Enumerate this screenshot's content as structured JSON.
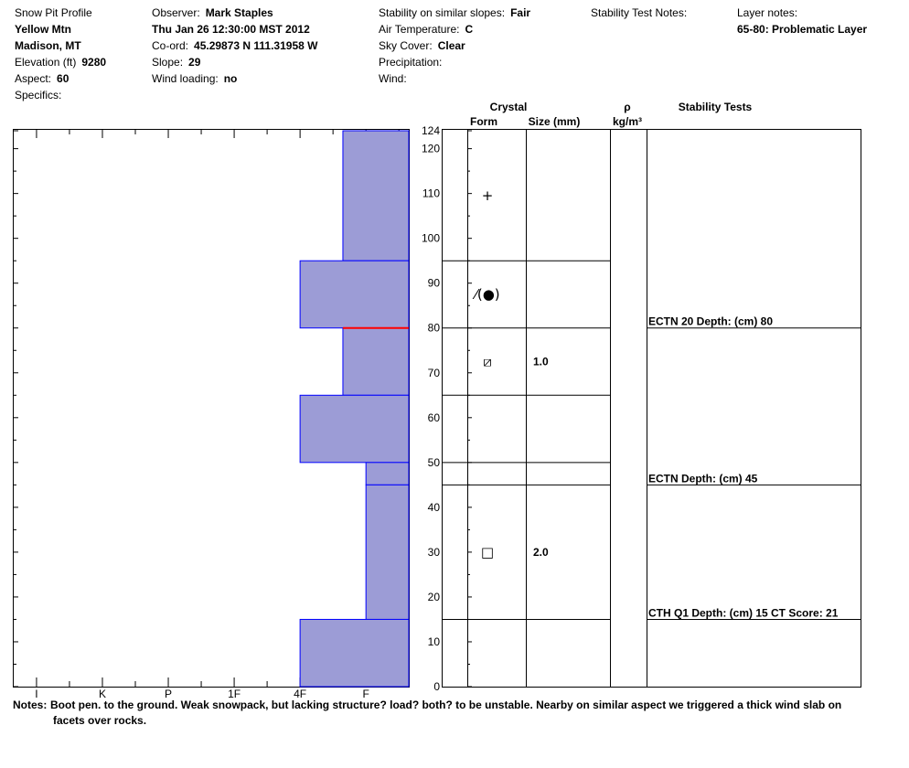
{
  "header": {
    "columns": [
      [
        {
          "label": "Snow Pit Profile"
        },
        {
          "value": "Yellow Mtn"
        },
        {
          "value": "Madison, MT"
        },
        {
          "label": "Elevation (ft)",
          "value": "9280"
        },
        {
          "label": "Aspect:",
          "value": "60"
        },
        {
          "label": "Specifics:"
        }
      ],
      [
        {
          "label": "Observer:",
          "value": "Mark Staples"
        },
        {
          "value": "Thu Jan 26 12:30:00 MST 2012"
        },
        {
          "label": "Co-ord:",
          "value": "45.29873 N 111.31958 W"
        },
        {
          "label": "Slope:",
          "value": "29"
        },
        {
          "label": "Wind loading:",
          "value": "no"
        }
      ],
      [
        {
          "label": "Stability on similar slopes:",
          "value": "Fair"
        },
        {
          "label": "Air Temperature:",
          "value": "C"
        },
        {
          "label": "Sky Cover:",
          "value": "Clear"
        },
        {
          "label": "Precipitation:"
        },
        {
          "label": "Wind:"
        }
      ],
      [
        {
          "label": "Stability Test Notes:"
        }
      ],
      [
        {
          "label": "Layer notes:"
        },
        {
          "value": "65-80: Problematic Layer"
        }
      ]
    ]
  },
  "chart_data": {
    "type": "hardness-profile",
    "xlim": [
      6.36,
      0.35
    ],
    "xticks": [
      {
        "value": 6,
        "label": "I"
      },
      {
        "value": 5,
        "label": "K"
      },
      {
        "value": 4,
        "label": "P"
      },
      {
        "value": 3,
        "label": "1F"
      },
      {
        "value": 2,
        "label": "4F"
      },
      {
        "value": 1,
        "label": "F"
      }
    ],
    "xminor": [
      5.5,
      4.5,
      3.5,
      2.5,
      1.5,
      0.5
    ],
    "ylim": [
      0,
      124
    ],
    "yticks": [
      0,
      10,
      20,
      30,
      40,
      50,
      60,
      70,
      80,
      90,
      100,
      110,
      120,
      124
    ],
    "yminor": [
      5,
      15,
      25,
      35,
      45,
      55,
      65,
      75,
      85,
      95,
      105,
      115
    ],
    "bar_color": "#9c9cd6",
    "edge_color": "#0000ff",
    "columns": {
      "crystal": "Crystal",
      "form": "Form",
      "size": "Size (mm)",
      "density": "ρ",
      "density_unit": "kg/m³",
      "tests": "Stability Tests"
    },
    "layers": [
      {
        "top": 124,
        "bottom": 95,
        "hardness": 1.35,
        "form": "+"
      },
      {
        "top": 95,
        "bottom": 80,
        "hardness": 2,
        "form": "⁄(●)"
      },
      {
        "top": 80,
        "bottom": 65,
        "hardness": 1.35,
        "form": "⧄",
        "size": "1.0",
        "highlight_color": "#ff0000"
      },
      {
        "top": 65,
        "bottom": 50,
        "hardness": 2
      },
      {
        "top": 50,
        "bottom": 45,
        "hardness": 1
      },
      {
        "top": 45,
        "bottom": 15,
        "hardness": 1,
        "form": "□",
        "size": "2.0"
      },
      {
        "top": 15,
        "bottom": 0,
        "hardness": 2
      }
    ],
    "tests": [
      {
        "depth": 80,
        "label": "ECTN 20   Depth: (cm) 80"
      },
      {
        "depth": 45,
        "label": "ECTN   Depth: (cm) 45"
      },
      {
        "depth": 15,
        "label": "CTH Q1 Depth: (cm) 15 CT Score: 21"
      }
    ]
  },
  "notes": {
    "label": "Notes:",
    "lines": [
      "Boot pen. to the ground.  Weak snowpack, but lacking structure? load? both? to be unstable.  Nearby on similar aspect we triggered a thick wind slab on",
      "facets over rocks."
    ]
  }
}
